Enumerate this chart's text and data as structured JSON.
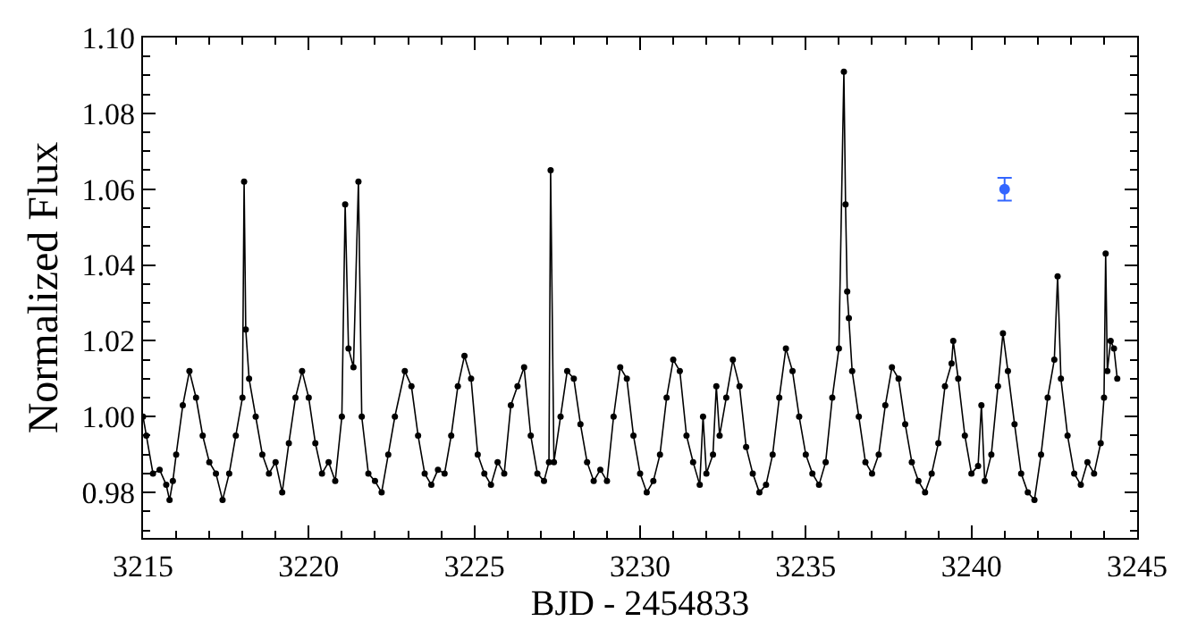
{
  "chart_data": {
    "type": "line",
    "xlabel": "BJD - 2454833",
    "ylabel": "Normalized Flux",
    "xlim": [
      3215,
      3245
    ],
    "xticks": [
      3215,
      3220,
      3225,
      3230,
      3235,
      3240,
      3245
    ],
    "ylim": [
      0.968,
      1.1
    ],
    "yticks": [
      {
        "value": 0.98,
        "label": "0.98"
      },
      {
        "value": 1.0,
        "label": "1.00"
      },
      {
        "value": 1.02,
        "label": "1.02"
      },
      {
        "value": 1.04,
        "label": "1.04"
      },
      {
        "value": 1.06,
        "label": "1.06"
      },
      {
        "value": 1.08,
        "label": "1.08"
      },
      {
        "value": 1.1,
        "label": "1.10"
      }
    ],
    "grid": false,
    "marker": "circle",
    "line_style": "solid",
    "series": [
      {
        "color": "#000000",
        "x": [
          3215.0,
          3215.1,
          3215.3,
          3215.5,
          3215.7,
          3215.8,
          3215.9,
          3216.0,
          3216.2,
          3216.4,
          3216.6,
          3216.8,
          3217.0,
          3217.2,
          3217.4,
          3217.6,
          3217.8,
          3218.0,
          3218.05,
          3218.1,
          3218.2,
          3218.4,
          3218.6,
          3218.8,
          3219.0,
          3219.2,
          3219.4,
          3219.6,
          3219.8,
          3220.0,
          3220.2,
          3220.4,
          3220.6,
          3220.8,
          3221.0,
          3221.1,
          3221.2,
          3221.35,
          3221.5,
          3221.6,
          3221.8,
          3222.0,
          3222.2,
          3222.4,
          3222.6,
          3222.9,
          3223.1,
          3223.3,
          3223.5,
          3223.7,
          3223.9,
          3224.1,
          3224.3,
          3224.5,
          3224.7,
          3224.9,
          3225.1,
          3225.3,
          3225.5,
          3225.7,
          3225.9,
          3226.1,
          3226.3,
          3226.5,
          3226.7,
          3226.9,
          3227.1,
          3227.25,
          3227.3,
          3227.4,
          3227.6,
          3227.8,
          3228.0,
          3228.2,
          3228.4,
          3228.6,
          3228.8,
          3229.0,
          3229.2,
          3229.4,
          3229.6,
          3229.8,
          3230.0,
          3230.2,
          3230.4,
          3230.6,
          3230.8,
          3231.0,
          3231.2,
          3231.4,
          3231.6,
          3231.8,
          3231.9,
          3232.0,
          3232.2,
          3232.3,
          3232.4,
          3232.6,
          3232.8,
          3233.0,
          3233.2,
          3233.4,
          3233.6,
          3233.8,
          3234.0,
          3234.2,
          3234.4,
          3234.6,
          3234.8,
          3235.0,
          3235.2,
          3235.4,
          3235.6,
          3235.8,
          3236.0,
          3236.15,
          3236.2,
          3236.25,
          3236.3,
          3236.4,
          3236.6,
          3236.8,
          3237.0,
          3237.2,
          3237.4,
          3237.6,
          3237.8,
          3238.0,
          3238.2,
          3238.4,
          3238.6,
          3238.8,
          3239.0,
          3239.2,
          3239.4,
          3239.45,
          3239.6,
          3239.8,
          3240.0,
          3240.2,
          3240.3,
          3240.4,
          3240.6,
          3240.8,
          3240.95,
          3241.1,
          3241.3,
          3241.5,
          3241.7,
          3241.9,
          3242.1,
          3242.3,
          3242.5,
          3242.6,
          3242.7,
          3242.9,
          3243.1,
          3243.3,
          3243.5,
          3243.7,
          3243.9,
          3244.0,
          3244.05,
          3244.1,
          3244.2,
          3244.3,
          3244.4
        ],
        "values": [
          1.0,
          0.995,
          0.985,
          0.986,
          0.982,
          0.978,
          0.983,
          0.99,
          1.003,
          1.012,
          1.005,
          0.995,
          0.988,
          0.985,
          0.978,
          0.985,
          0.995,
          1.005,
          1.062,
          1.023,
          1.01,
          1.0,
          0.99,
          0.985,
          0.988,
          0.98,
          0.993,
          1.005,
          1.012,
          1.005,
          0.993,
          0.985,
          0.988,
          0.983,
          1.0,
          1.056,
          1.018,
          1.013,
          1.062,
          1.0,
          0.985,
          0.983,
          0.98,
          0.99,
          1.0,
          1.012,
          1.008,
          0.995,
          0.985,
          0.982,
          0.986,
          0.985,
          0.995,
          1.008,
          1.016,
          1.01,
          0.99,
          0.985,
          0.982,
          0.988,
          0.985,
          1.003,
          1.008,
          1.013,
          0.995,
          0.985,
          0.983,
          0.988,
          1.065,
          0.988,
          1.0,
          1.012,
          1.01,
          0.998,
          0.988,
          0.983,
          0.986,
          0.983,
          1.0,
          1.013,
          1.01,
          0.995,
          0.985,
          0.98,
          0.983,
          0.99,
          1.005,
          1.015,
          1.012,
          0.995,
          0.988,
          0.982,
          1.0,
          0.985,
          0.99,
          1.008,
          0.995,
          1.005,
          1.015,
          1.008,
          0.992,
          0.985,
          0.98,
          0.982,
          0.99,
          1.005,
          1.018,
          1.012,
          1.0,
          0.99,
          0.985,
          0.982,
          0.988,
          1.005,
          1.018,
          1.091,
          1.056,
          1.033,
          1.026,
          1.012,
          1.0,
          0.988,
          0.985,
          0.99,
          1.003,
          1.013,
          1.01,
          0.998,
          0.988,
          0.983,
          0.98,
          0.985,
          0.993,
          1.008,
          1.014,
          1.02,
          1.01,
          0.995,
          0.985,
          0.987,
          1.003,
          0.983,
          0.99,
          1.008,
          1.022,
          1.012,
          0.998,
          0.985,
          0.98,
          0.978,
          0.99,
          1.005,
          1.015,
          1.037,
          1.01,
          0.995,
          0.985,
          0.982,
          0.988,
          0.985,
          0.993,
          1.005,
          1.043,
          1.012,
          1.02,
          1.018,
          1.01
        ]
      },
      {
        "type": "scatter",
        "color": "#3366ff",
        "x": [
          3241
        ],
        "values": [
          1.06
        ],
        "errors": [
          0.003
        ]
      }
    ]
  }
}
